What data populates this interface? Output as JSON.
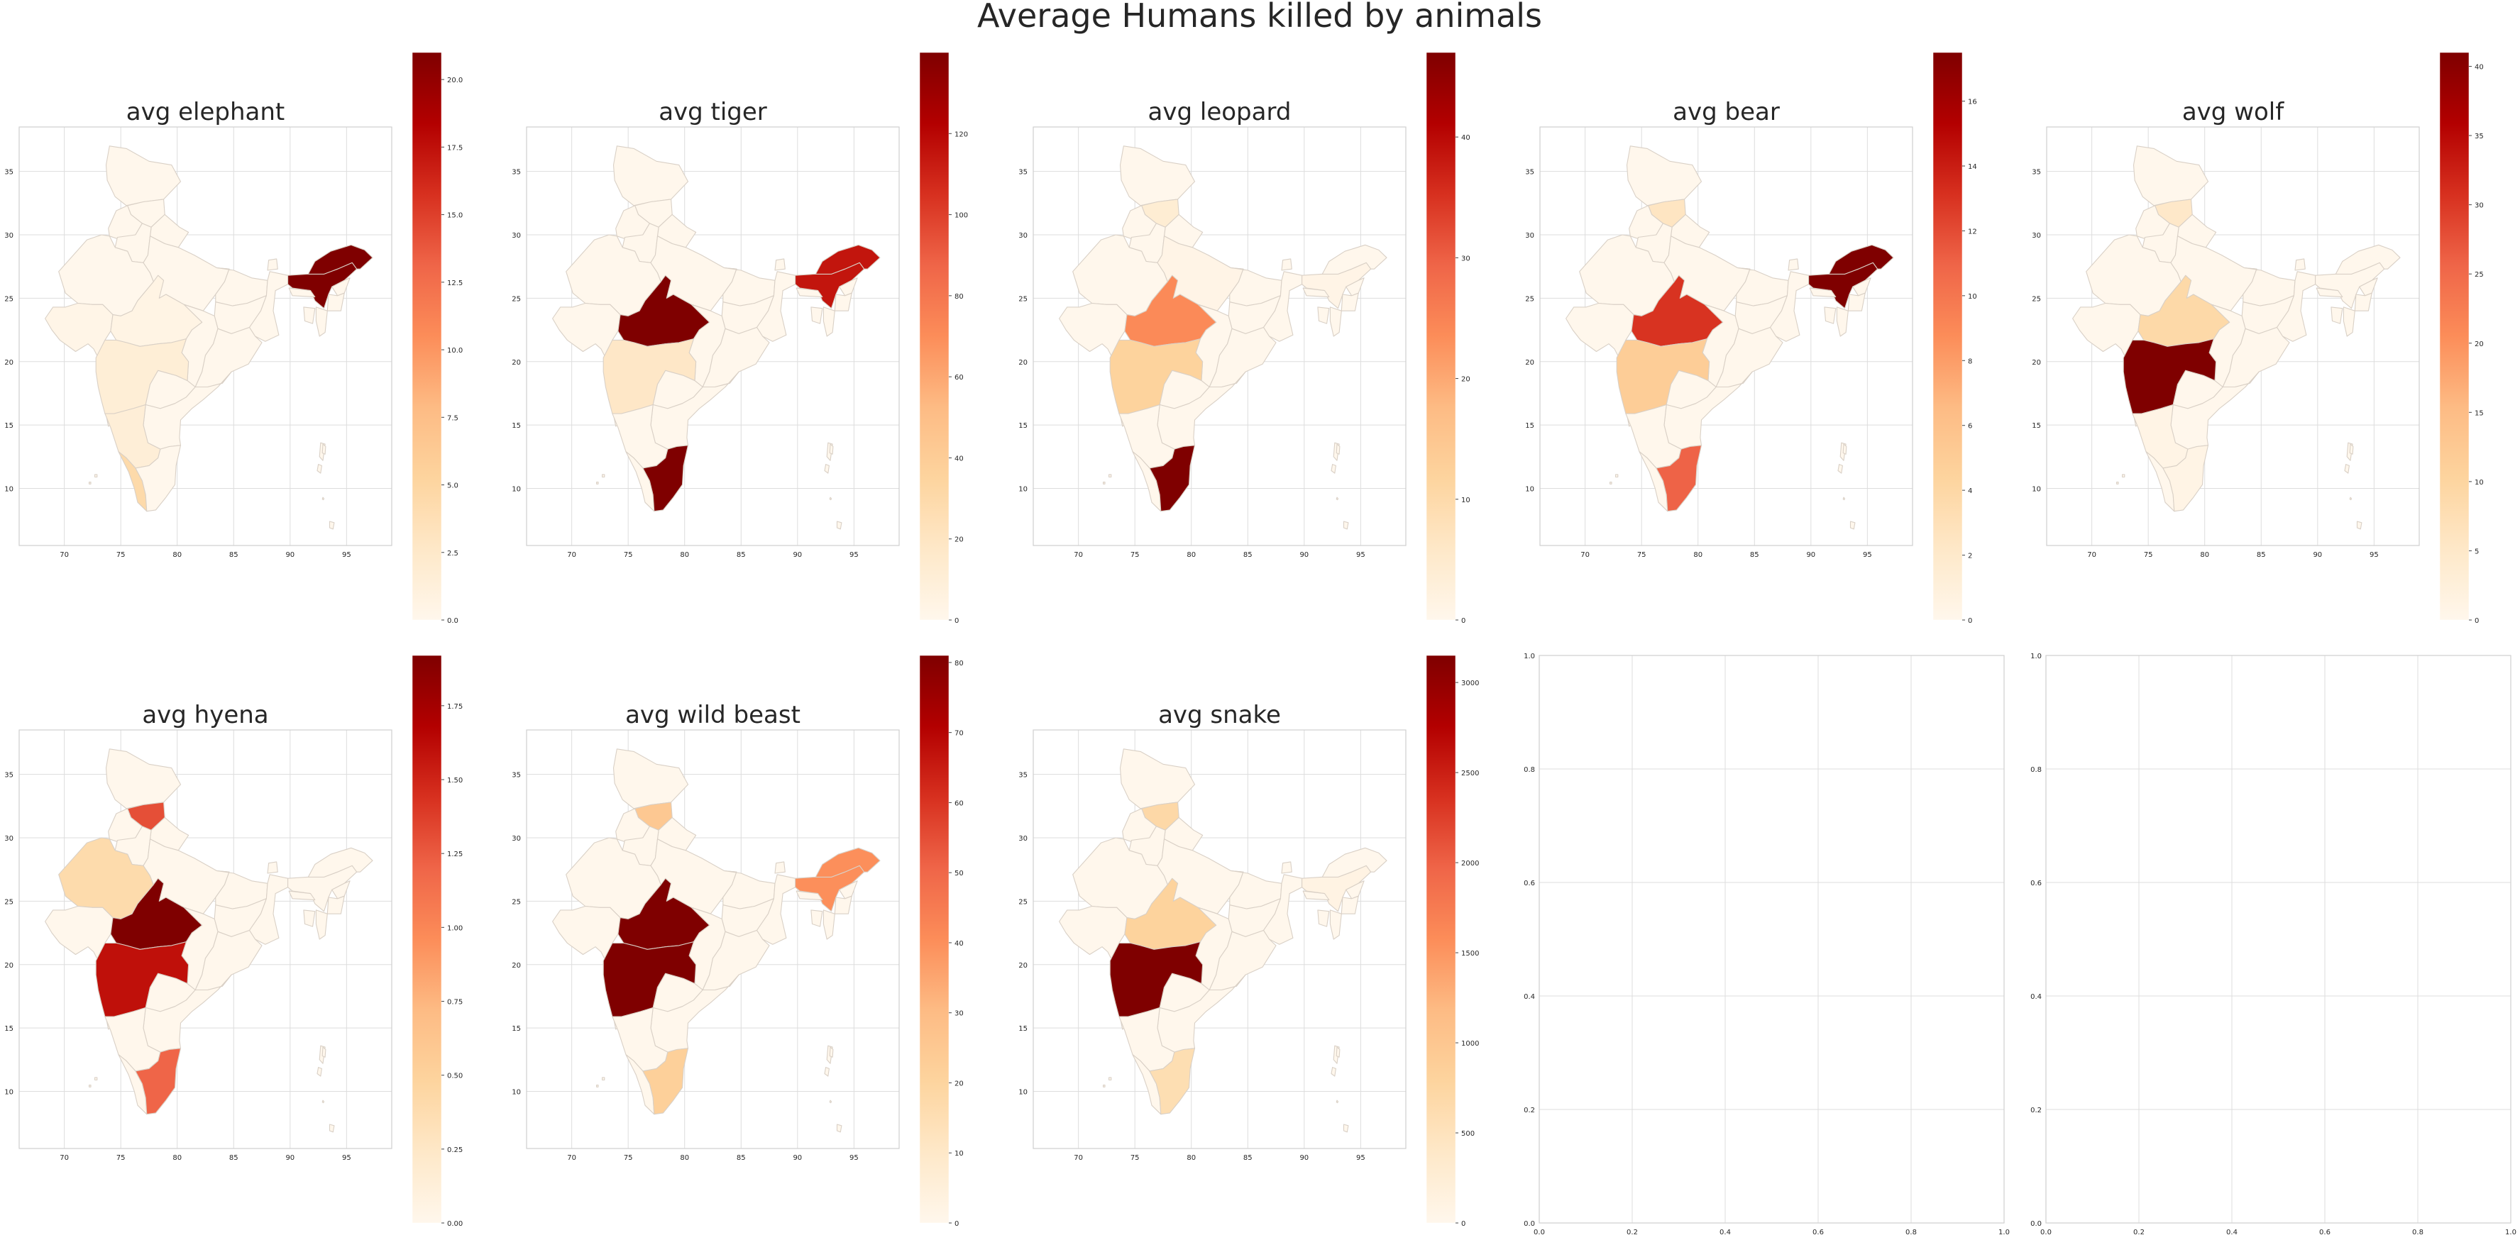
{
  "figure": {
    "title": "Average Humans killed by animals"
  },
  "colormap": {
    "name": "OrRd",
    "stops": [
      "#fff7ec",
      "#fee8c8",
      "#fdd49e",
      "#fdbb84",
      "#fc8d59",
      "#ef6548",
      "#d7301f",
      "#b30000",
      "#7f0000"
    ]
  },
  "map_axes": {
    "x_ticks": [
      70,
      75,
      80,
      85,
      90,
      95
    ],
    "y_ticks": [
      10,
      15,
      20,
      25,
      30,
      35
    ],
    "xlim": [
      66,
      99
    ],
    "ylim": [
      5.5,
      38.5
    ]
  },
  "empty_axes": {
    "ticks": [
      "0.0",
      "0.2",
      "0.4",
      "0.6",
      "0.8",
      "1.0"
    ]
  },
  "chart_data": [
    {
      "type": "choropleth",
      "title": "avg elephant",
      "colorbar": {
        "vmin": 0,
        "vmax": 21,
        "ticks": [
          "0.0",
          "2.5",
          "5.0",
          "7.5",
          "10.0",
          "12.5",
          "15.0",
          "17.5",
          "20.0"
        ],
        "tick_values": [
          0,
          2.5,
          5,
          7.5,
          10,
          12.5,
          15,
          17.5,
          20
        ]
      },
      "values": {
        "Assam": 21,
        "Arunachal Pradesh": 21,
        "Kerala": 4.5,
        "Maharashtra": 1.6,
        "Karnataka": 1.5,
        "Gujarat": 0.4,
        "Madhya Pradesh": 0.6
      }
    },
    {
      "type": "choropleth",
      "title": "avg tiger",
      "colorbar": {
        "vmin": 0,
        "vmax": 140,
        "ticks": [
          "0",
          "20",
          "40",
          "60",
          "80",
          "100",
          "120"
        ],
        "tick_values": [
          0,
          20,
          40,
          60,
          80,
          100,
          120
        ]
      },
      "values": {
        "Madhya Pradesh": 140,
        "Tamil Nadu": 140,
        "Assam": 115,
        "Arunachal Pradesh": 115,
        "Maharashtra": 18
      }
    },
    {
      "type": "choropleth",
      "title": "avg leopard",
      "colorbar": {
        "vmin": 0,
        "vmax": 47,
        "ticks": [
          "0",
          "10",
          "20",
          "30",
          "40"
        ],
        "tick_values": [
          0,
          10,
          20,
          30,
          40
        ]
      },
      "values": {
        "Tamil Nadu": 47,
        "Madhya Pradesh": 24,
        "Maharashtra": 12,
        "Himachal Pradesh": 4,
        "Uttar Pradesh": 1,
        "Assam": 1
      }
    },
    {
      "type": "choropleth",
      "title": "avg bear",
      "colorbar": {
        "vmin": 0,
        "vmax": 17.5,
        "ticks": [
          "0",
          "2",
          "4",
          "6",
          "8",
          "10",
          "12",
          "14",
          "16"
        ],
        "tick_values": [
          0,
          2,
          4,
          6,
          8,
          10,
          12,
          14,
          16
        ]
      },
      "values": {
        "Assam": 17.5,
        "Arunachal Pradesh": 17.5,
        "Madhya Pradesh": 13,
        "Tamil Nadu": 11,
        "Maharashtra": 5,
        "Himachal Pradesh": 2.5
      }
    },
    {
      "type": "choropleth",
      "title": "avg wolf",
      "colorbar": {
        "vmin": 0,
        "vmax": 41,
        "ticks": [
          "0",
          "5",
          "10",
          "15",
          "20",
          "25",
          "30",
          "35",
          "40"
        ],
        "tick_values": [
          0,
          5,
          10,
          15,
          20,
          25,
          30,
          35,
          40
        ]
      },
      "values": {
        "Maharashtra": 41,
        "Madhya Pradesh": 9,
        "Himachal Pradesh": 5,
        "Tamil Nadu": 1,
        "Karnataka": 1
      }
    },
    {
      "type": "choropleth",
      "title": "avg hyena",
      "colorbar": {
        "vmin": 0,
        "vmax": 1.92,
        "ticks": [
          "0.00",
          "0.25",
          "0.50",
          "0.75",
          "1.00",
          "1.25",
          "1.50",
          "1.75"
        ],
        "tick_values": [
          0,
          0.25,
          0.5,
          0.75,
          1,
          1.25,
          1.5,
          1.75
        ]
      },
      "values": {
        "Madhya Pradesh": 1.92,
        "Maharashtra": 1.6,
        "Himachal Pradesh": 1.3,
        "Tamil Nadu": 1.2,
        "Rajasthan": 0.4
      }
    },
    {
      "type": "choropleth",
      "title": "avg wild beast",
      "colorbar": {
        "vmin": 0,
        "vmax": 81,
        "ticks": [
          "0",
          "10",
          "20",
          "30",
          "40",
          "50",
          "60",
          "70",
          "80"
        ],
        "tick_values": [
          0,
          10,
          20,
          30,
          40,
          50,
          60,
          70,
          80
        ]
      },
      "values": {
        "Madhya Pradesh": 81,
        "Maharashtra": 81,
        "Assam": 40,
        "Arunachal Pradesh": 40,
        "Himachal Pradesh": 25,
        "Tamil Nadu": 22
      }
    },
    {
      "type": "choropleth",
      "title": "avg snake",
      "colorbar": {
        "vmin": 0,
        "vmax": 3150,
        "ticks": [
          "0",
          "500",
          "1000",
          "1500",
          "2000",
          "2500",
          "3000"
        ],
        "tick_values": [
          0,
          500,
          1000,
          1500,
          2000,
          2500,
          3000
        ]
      },
      "values": {
        "Maharashtra": 3150,
        "Madhya Pradesh": 800,
        "Himachal Pradesh": 700,
        "Tamil Nadu": 600,
        "Assam": 100
      }
    }
  ]
}
